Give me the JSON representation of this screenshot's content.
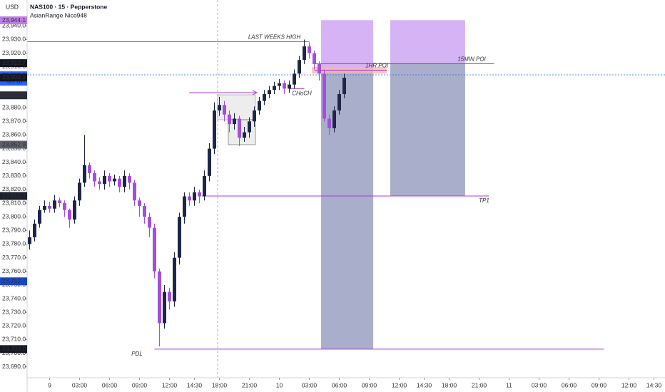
{
  "chart_data": {
    "type": "candlestick",
    "title": "NAS100 · 15 · Pepperstone",
    "subtitle": "AsianRange Nico948",
    "currency": "USD",
    "up_color": "#1e2747",
    "down_color": "#a24fdc",
    "x": [
      1,
      3,
      5,
      7,
      9,
      11,
      13,
      15,
      17,
      19,
      21,
      23,
      25,
      27,
      29,
      31,
      33,
      35,
      37,
      39,
      41,
      43,
      45,
      47,
      49,
      51,
      53,
      55,
      57,
      59,
      61,
      63,
      65,
      67,
      69,
      71,
      73,
      75,
      77,
      79,
      81,
      83,
      85,
      87,
      89,
      91,
      93,
      95,
      97,
      99,
      101,
      103,
      105,
      107,
      109,
      111,
      113,
      115,
      117,
      119,
      121,
      123,
      125,
      127
    ],
    "open": [
      23780,
      23785,
      23795,
      23805,
      23808,
      23806,
      23812,
      23810,
      23805,
      23798,
      23812,
      23825,
      23838,
      23832,
      23826,
      23824,
      23830,
      23826,
      23828,
      23822,
      23830,
      23825,
      23812,
      23808,
      23800,
      23792,
      23760,
      23722,
      23745,
      23738,
      23770,
      23800,
      23815,
      23812,
      23818,
      23815,
      23830,
      23850,
      23878,
      23882,
      23875,
      23868,
      23872,
      23858,
      23862,
      23870,
      23878,
      23885,
      23890,
      23893,
      23896,
      23898,
      23894,
      23897,
      23905,
      23915,
      23925,
      23920,
      23912,
      23905,
      23872,
      23865,
      23878,
      23890
    ],
    "high": [
      23790,
      23798,
      23808,
      23812,
      23811,
      23816,
      23814,
      23812,
      23806,
      23815,
      23828,
      23860,
      23840,
      23834,
      23829,
      23834,
      23832,
      23831,
      23830,
      23834,
      23832,
      23827,
      23814,
      23810,
      23803,
      23795,
      23762,
      23750,
      23748,
      23774,
      23803,
      23818,
      23818,
      23822,
      23820,
      23834,
      23854,
      23884,
      23888,
      23885,
      23878,
      23876,
      23874,
      23866,
      23873,
      23881,
      23888,
      23893,
      23896,
      23899,
      23901,
      23900,
      23900,
      23908,
      23918,
      23930,
      23928,
      23922,
      23914,
      23908,
      23875,
      23881,
      23893,
      23905
    ],
    "low": [
      23776,
      23782,
      23792,
      23803,
      23803,
      23803,
      23807,
      23800,
      23792,
      23795,
      23808,
      23822,
      23828,
      23822,
      23820,
      23820,
      23822,
      23823,
      23818,
      23818,
      23820,
      23808,
      23800,
      23795,
      23785,
      23755,
      23705,
      23718,
      23732,
      23734,
      23765,
      23795,
      23808,
      23808,
      23810,
      23812,
      23826,
      23846,
      23874,
      23870,
      23862,
      23864,
      23852,
      23855,
      23858,
      23866,
      23875,
      23882,
      23887,
      23890,
      23893,
      23890,
      23891,
      23894,
      23902,
      23912,
      23916,
      23908,
      23900,
      23870,
      23860,
      23862,
      23875,
      23887
    ],
    "close": [
      23785,
      23795,
      23805,
      23808,
      23806,
      23812,
      23810,
      23805,
      23798,
      23812,
      23825,
      23838,
      23832,
      23826,
      23824,
      23830,
      23826,
      23828,
      23822,
      23830,
      23825,
      23812,
      23808,
      23800,
      23792,
      23760,
      23722,
      23745,
      23738,
      23770,
      23800,
      23815,
      23812,
      23818,
      23815,
      23830,
      23850,
      23878,
      23882,
      23875,
      23868,
      23872,
      23858,
      23862,
      23870,
      23878,
      23885,
      23890,
      23893,
      23896,
      23898,
      23894,
      23897,
      23905,
      23915,
      23925,
      23920,
      23912,
      23905,
      23872,
      23865,
      23878,
      23890,
      23902
    ],
    "xlim": [
      0,
      254
    ],
    "ylim": [
      23682,
      23959
    ],
    "xticks": [
      9,
      {
        "value": 21,
        "label": "03:00"
      },
      {
        "value": 33,
        "label": "06:00"
      },
      {
        "value": 45,
        "label": "09:00"
      },
      {
        "value": 57,
        "label": "12:00"
      },
      {
        "value": 67,
        "label": "14:30"
      },
      {
        "value": 77,
        "label": "18:00"
      },
      {
        "value": 89,
        "label": "21:00"
      },
      {
        "value": 101,
        "label": "10"
      },
      {
        "value": 113,
        "label": "03:00"
      },
      {
        "value": 125,
        "label": "06:00"
      },
      {
        "value": 137,
        "label": "09:00"
      },
      {
        "value": 149,
        "label": "12:00"
      },
      {
        "value": 159,
        "label": "14:30"
      },
      {
        "value": 169,
        "label": "18:00"
      },
      {
        "value": 181,
        "label": "21:00"
      },
      {
        "value": 193,
        "label": "11"
      },
      {
        "value": 205,
        "label": "03:00"
      },
      {
        "value": 217,
        "label": "06:00"
      },
      {
        "value": 229,
        "label": "09:00"
      },
      {
        "value": 241,
        "label": "12:00"
      },
      {
        "value": 251,
        "label": "14:30"
      }
    ],
    "yticks": [
      {
        "value": 23690,
        "label": "23,690.0"
      },
      {
        "value": 23700,
        "label": "23,700.0"
      },
      {
        "value": 23710,
        "label": "23,710.0"
      },
      {
        "value": 23720,
        "label": "23,720.0"
      },
      {
        "value": 23730,
        "label": "23,730.0"
      },
      {
        "value": 23740,
        "label": "23,740.0"
      },
      {
        "value": 23750,
        "label": "23,750.0"
      },
      {
        "value": 23760,
        "label": "23,760.0"
      },
      {
        "value": 23770,
        "label": "23,770.0"
      },
      {
        "value": 23780,
        "label": "23,780.0"
      },
      {
        "value": 23790,
        "label": "23,790.0"
      },
      {
        "value": 23800,
        "label": "23,800.0"
      },
      {
        "value": 23810,
        "label": "23,810.0"
      },
      {
        "value": 23820,
        "label": "23,820.0"
      },
      {
        "value": 23830,
        "label": "23,830.0"
      },
      {
        "value": 23840,
        "label": "23,840.0"
      },
      {
        "value": 23850,
        "label": "23,850.0"
      },
      {
        "value": 23860,
        "label": "23,860.0"
      },
      {
        "value": 23870,
        "label": "23,870.0"
      },
      {
        "value": 23880,
        "label": "23,880.0"
      },
      {
        "value": 23890,
        "label": "23,890.0"
      },
      {
        "value": 23900,
        "label": "23,900.0"
      },
      {
        "value": 23910,
        "label": "23,910.0"
      },
      {
        "value": 23920,
        "label": "23,920.0"
      },
      {
        "value": 23930,
        "label": "23,930.0"
      },
      {
        "value": 23940,
        "label": "23,940.0"
      }
    ],
    "price_labels": [
      {
        "value": 23944.1,
        "label": "23,944.1",
        "color": "#c07ce8"
      },
      {
        "value": 23912.7,
        "label": "23,912.7",
        "color": "#131722"
      },
      {
        "value": 23903.8,
        "label": "23,903.8",
        "sublabel": "08:18",
        "color": "#2962ff"
      },
      {
        "value": 23902.1,
        "label": "23,902.1",
        "color": "#131722"
      },
      {
        "value": 23889.1,
        "label": "23,889.1",
        "color": "#2a2e39"
      },
      {
        "value": 23852.9,
        "label": "23,852.9",
        "color": "#5d606b"
      },
      {
        "value": 23815.3,
        "label": "23,815.3",
        "color": "#1b1f2b"
      },
      {
        "value": 23752.7,
        "label": "23,752.7",
        "color": "#1848cc"
      },
      {
        "value": 23703.0,
        "label": "23,703.0",
        "color": "#131722"
      }
    ],
    "zones": [
      {
        "x": [
          117.7,
          138.6
        ],
        "y": [
          23908.2,
          23944.2
        ],
        "color": "#c89af0"
      },
      {
        "x": [
          117.7,
          138.6
        ],
        "y": [
          23703,
          23908.2
        ],
        "color": "#8c93b8"
      },
      {
        "x": [
          145.4,
          175.4
        ],
        "y": [
          23912.9,
          23944.2
        ],
        "color": "#c89af0"
      },
      {
        "x": [
          145.4,
          175.4
        ],
        "y": [
          23815.3,
          23912.9
        ],
        "color": "#8c93b8"
      },
      {
        "x": [
          114,
          144
        ],
        "y": [
          23905,
          23910
        ],
        "color": "#f4b9a0"
      }
    ],
    "levels": [
      {
        "text": "LAST WEEKS HIGH",
        "value": 23928.5,
        "x": [
          0,
          113
        ],
        "label_x": 99,
        "color": "#b03cd8"
      },
      {
        "text": "15MIN POI",
        "value": 23912.3,
        "x": [
          115,
          187
        ],
        "label_x": 178,
        "color": "#2e8b3a"
      },
      {
        "text": "1HR POI",
        "value": 23907.5,
        "x": [
          115,
          144
        ],
        "label_x": 140,
        "color": "#b03cd8"
      },
      {
        "text": "TP1",
        "value": 23815.3,
        "x": [
          70,
          185
        ],
        "label_x": 183,
        "color": "#b03cd8"
      },
      {
        "text": "PDL",
        "value": 23703,
        "x": [
          51,
          231
        ],
        "label_x": 44,
        "color": "#b03cd8"
      },
      {
        "text": "CHoCH",
        "value": 23894,
        "x": [
          105,
          111
        ],
        "label_x": 110,
        "color": "#b03cd8"
      }
    ]
  }
}
